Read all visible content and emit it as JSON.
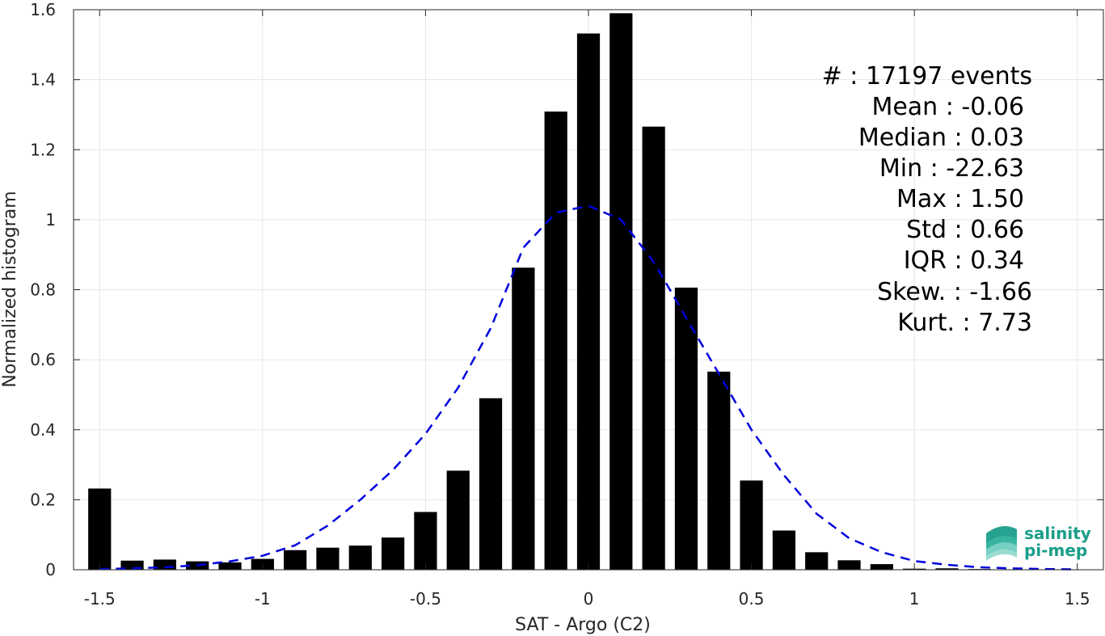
{
  "chart_data": {
    "type": "bar",
    "xlabel": "SAT - Argo (C2)",
    "ylabel": "Normalized histogram",
    "xlim": [
      -1.58,
      1.58
    ],
    "ylim": [
      0,
      1.6
    ],
    "grid": true,
    "xticks": [
      -1.5,
      -1,
      -0.5,
      0,
      0.5,
      1,
      1.5
    ],
    "xtick_labels": [
      "-1.5",
      "-1",
      "-0.5",
      "0",
      "0.5",
      "1",
      "1.5"
    ],
    "yticks": [
      0,
      0.2,
      0.4,
      0.6,
      0.8,
      1,
      1.2,
      1.4,
      1.6
    ],
    "ytick_labels": [
      "0",
      "0.2",
      "0.4",
      "0.6",
      "0.8",
      "1",
      "1.2",
      "1.4",
      "1.6"
    ],
    "bar_color": "#000000",
    "bar_width": 0.07,
    "bins": [
      -1.5,
      -1.4,
      -1.3,
      -1.2,
      -1.1,
      -1.0,
      -0.9,
      -0.8,
      -0.7,
      -0.6,
      -0.5,
      -0.4,
      -0.3,
      -0.2,
      -0.1,
      0.0,
      0.1,
      0.2,
      0.3,
      0.4,
      0.5,
      0.6,
      0.7,
      0.8,
      0.9,
      1.0,
      1.1,
      1.2,
      1.3,
      1.4,
      1.5
    ],
    "values": [
      0.232,
      0.026,
      0.029,
      0.024,
      0.021,
      0.031,
      0.056,
      0.063,
      0.069,
      0.092,
      0.165,
      0.283,
      0.49,
      0.863,
      1.309,
      1.532,
      1.59,
      1.266,
      0.806,
      0.566,
      0.255,
      0.112,
      0.05,
      0.027,
      0.016,
      0.003,
      0.004,
      0.002,
      0.001,
      0.0,
      0.0
    ],
    "fit_curve": {
      "style": "dashed",
      "color": "#0000dd",
      "x": [
        -1.5,
        -1.4,
        -1.3,
        -1.2,
        -1.1,
        -1.0,
        -0.9,
        -0.8,
        -0.7,
        -0.6,
        -0.5,
        -0.4,
        -0.3,
        -0.2,
        -0.1,
        0.0,
        0.1,
        0.2,
        0.3,
        0.4,
        0.5,
        0.6,
        0.7,
        0.8,
        0.9,
        1.0,
        1.1,
        1.2,
        1.3,
        1.4,
        1.5
      ],
      "y": [
        0.002,
        0.004,
        0.007,
        0.013,
        0.024,
        0.04,
        0.07,
        0.126,
        0.2,
        0.285,
        0.388,
        0.52,
        0.69,
        0.92,
        1.02,
        1.04,
        1.0,
        0.88,
        0.72,
        0.56,
        0.4,
        0.27,
        0.16,
        0.09,
        0.05,
        0.025,
        0.014,
        0.007,
        0.004,
        0.002,
        0.001
      ]
    },
    "stats": [
      "#  : 17197 events",
      "Mean : -0.06",
      "Median : 0.03",
      "Min : -22.63",
      "Max : 1.50",
      "Std : 0.66",
      "IQR : 0.34",
      "Skew. : -1.66",
      "Kurt. : 7.73"
    ]
  },
  "logo": {
    "line1": "salinity",
    "line2": "pi-mep",
    "color": "#1a9e8a"
  }
}
